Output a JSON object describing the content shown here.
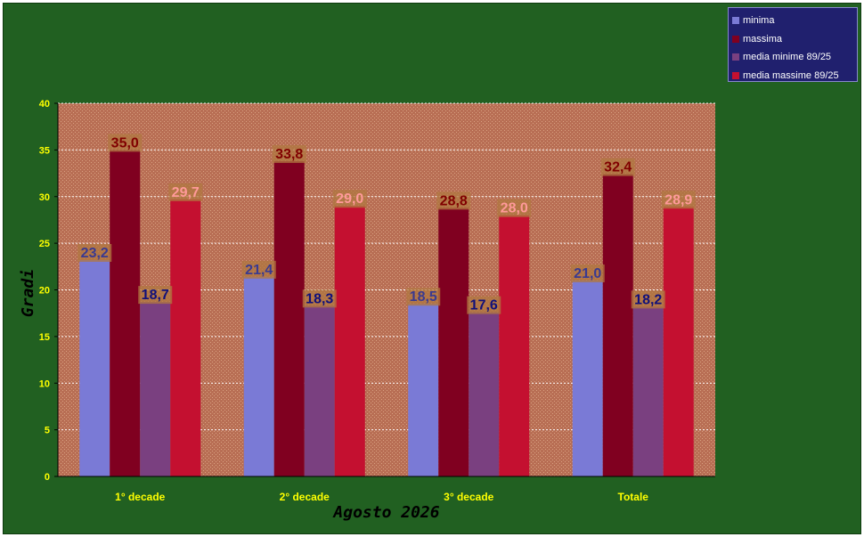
{
  "chart_data": {
    "type": "bar",
    "xlabel": "Agosto 2026",
    "ylabel": "Gradi",
    "ylim": [
      0,
      40
    ],
    "yticks": [
      0,
      5,
      10,
      15,
      20,
      25,
      30,
      35,
      40
    ],
    "grid": true,
    "legend_position": "top-right",
    "categories": [
      "1° decade",
      "2° decade",
      "3° decade",
      "Totale"
    ],
    "series": [
      {
        "name": "minima",
        "color": "#7a7ad6",
        "label_color": "#3a3a90",
        "values": [
          23.2,
          21.4,
          18.5,
          21.0
        ],
        "labels": [
          "23,2",
          "21,4",
          "18,5",
          "21,0"
        ]
      },
      {
        "name": "massima",
        "color": "#800020",
        "label_color": "#800000",
        "values": [
          35.0,
          33.8,
          28.8,
          32.4
        ],
        "labels": [
          "35,0",
          "33,8",
          "28,8",
          "32,4"
        ]
      },
      {
        "name": "media minime 89/25",
        "color": "#7a4080",
        "label_color": "#10107a",
        "values": [
          18.7,
          18.3,
          17.6,
          18.2
        ],
        "labels": [
          "18,7",
          "18,3",
          "17,6",
          "18,2"
        ]
      },
      {
        "name": "media massime 89/25",
        "color": "#c41030",
        "label_color": "#ff9999",
        "values": [
          29.7,
          29.0,
          28.0,
          28.9
        ],
        "labels": [
          "29,7",
          "29,0",
          "28,0",
          "28,9"
        ]
      }
    ]
  },
  "colors": {
    "background": "#216021",
    "plot_background": "#b86e54",
    "label_box": "#b07840",
    "axis_text": "#ffff00"
  }
}
